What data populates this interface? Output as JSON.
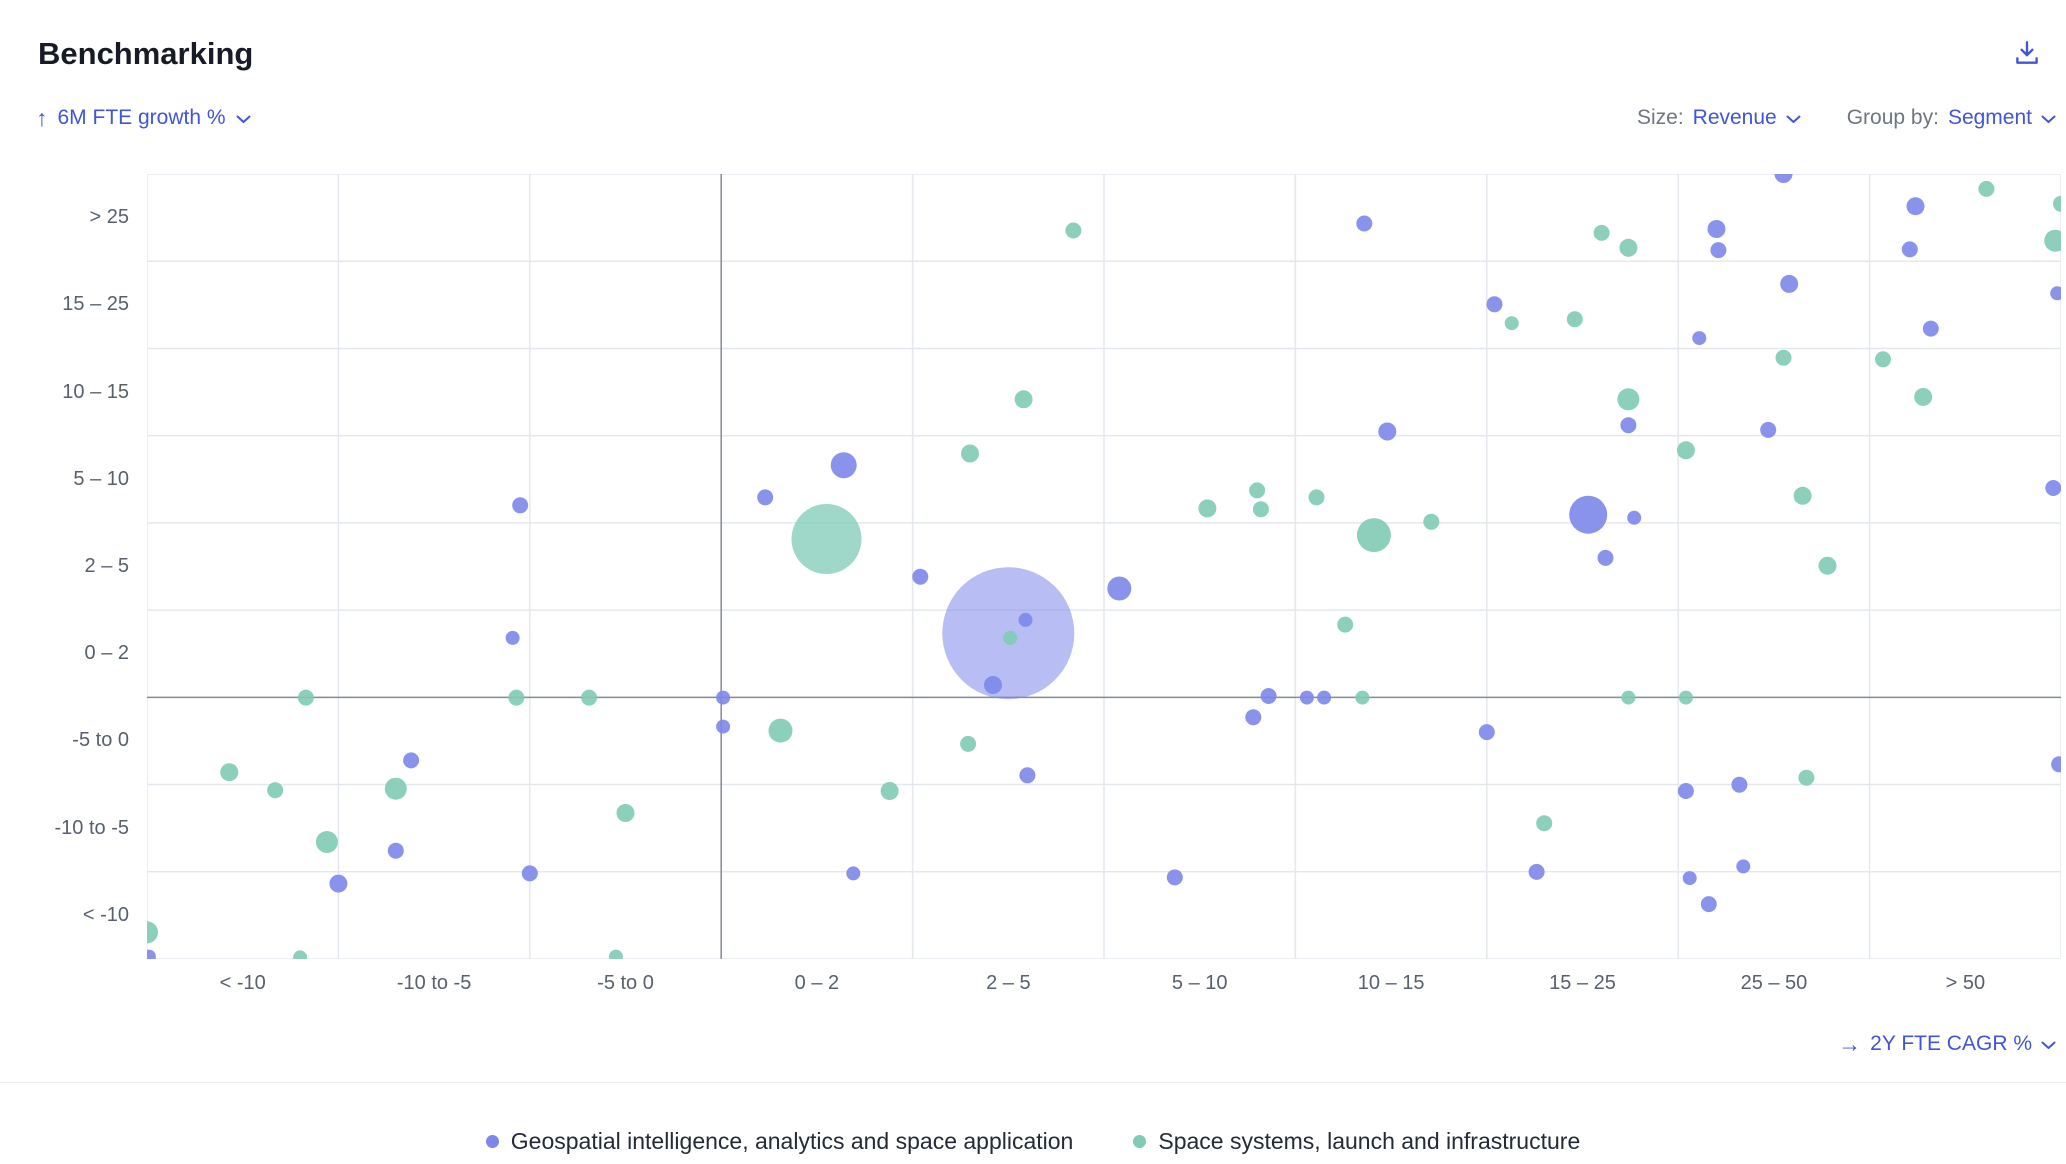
{
  "header": {
    "title": "Benchmarking"
  },
  "controls": {
    "y_axis_label": "6M FTE growth %",
    "size_prefix": "Size:",
    "size_value": "Revenue",
    "group_prefix": "Group by:",
    "group_value": "Segment",
    "x_axis_label": "2Y FTE CAGR %"
  },
  "colors": {
    "accent": "#4155d9",
    "grid": "#e4e8ee",
    "zero_line": "#858c96",
    "blue_series": "#7d87ea",
    "teal_series": "#7fcbb5"
  },
  "chart_data": {
    "type": "scatter",
    "title": "Benchmarking",
    "xlabel": "2Y FTE CAGR %",
    "ylabel": "6M FTE growth %",
    "size_by": "Revenue",
    "group_by": "Segment",
    "grid": true,
    "legend_position": "bottom",
    "x_categories": [
      "< -10",
      "-10 to -5",
      "-5 to 0",
      "0 – 2",
      "2 – 5",
      "5 – 10",
      "10 – 15",
      "15 – 25",
      "25 – 50",
      "> 50"
    ],
    "y_categories": [
      "> 25",
      "15 – 25",
      "10 – 15",
      "5 – 10",
      "2 – 5",
      "0 – 2",
      "-5 to 0",
      "-10 to -5",
      "< -10"
    ],
    "zero_x_boundary": 3,
    "zero_y_boundary": 6,
    "point_format": "[x_percent_of_plot_width, y_percent_of_plot_height, bubble_radius_px]",
    "series": [
      {
        "name": "Geospatial intelligence, analytics and space application",
        "color": "#7d87ea",
        "points": [
          [
            19.5,
            42.2,
            8
          ],
          [
            19.1,
            59.1,
            7
          ],
          [
            13.8,
            74.7,
            8
          ],
          [
            13.0,
            86.2,
            8
          ],
          [
            10.0,
            90.4,
            9
          ],
          [
            20.0,
            89.1,
            8
          ],
          [
            30.1,
            66.7,
            7
          ],
          [
            30.1,
            70.4,
            7
          ],
          [
            32.3,
            41.2,
            8
          ],
          [
            36.4,
            37.1,
            13
          ],
          [
            40.4,
            51.3,
            8
          ],
          [
            45.0,
            58.5,
            66
          ],
          [
            45.9,
            56.8,
            7
          ],
          [
            44.2,
            65.1,
            9
          ],
          [
            46.0,
            76.6,
            8
          ],
          [
            36.9,
            89.1,
            7
          ],
          [
            50.8,
            52.8,
            12
          ],
          [
            53.7,
            89.6,
            8
          ],
          [
            57.8,
            69.2,
            8
          ],
          [
            58.6,
            66.5,
            8
          ],
          [
            60.6,
            66.7,
            7
          ],
          [
            61.5,
            66.7,
            7
          ],
          [
            63.6,
            6.3,
            8
          ],
          [
            64.8,
            32.8,
            9
          ],
          [
            70.0,
            71.1,
            8
          ],
          [
            70.4,
            16.6,
            8
          ],
          [
            72.6,
            88.9,
            8
          ],
          [
            75.3,
            43.4,
            19
          ],
          [
            76.2,
            48.9,
            8
          ],
          [
            77.4,
            32.0,
            8
          ],
          [
            77.7,
            43.8,
            7
          ],
          [
            80.4,
            78.6,
            8
          ],
          [
            80.6,
            89.7,
            7
          ],
          [
            81.6,
            93.0,
            8
          ],
          [
            82.0,
            7.0,
            9
          ],
          [
            82.1,
            9.7,
            8
          ],
          [
            81.1,
            20.9,
            7
          ],
          [
            83.2,
            77.8,
            8
          ],
          [
            83.4,
            88.2,
            7
          ],
          [
            84.7,
            32.6,
            8
          ],
          [
            85.5,
            0.0,
            9
          ],
          [
            85.8,
            14.0,
            9
          ],
          [
            92.1,
            9.6,
            8
          ],
          [
            92.4,
            4.1,
            9
          ],
          [
            93.2,
            19.7,
            8
          ],
          [
            99.6,
            40.0,
            8
          ],
          [
            99.9,
            75.2,
            8
          ],
          [
            99.8,
            15.2,
            7
          ],
          [
            0.1,
            99.7,
            7
          ]
        ]
      },
      {
        "name": "Space systems, launch and infrastructure",
        "color": "#7fcbb5",
        "points": [
          [
            4.3,
            76.2,
            9
          ],
          [
            6.7,
            78.5,
            8
          ],
          [
            8.3,
            66.7,
            8
          ],
          [
            9.4,
            85.1,
            11
          ],
          [
            13.0,
            78.3,
            11
          ],
          [
            19.3,
            66.7,
            8
          ],
          [
            23.1,
            66.7,
            8
          ],
          [
            25.0,
            81.4,
            9
          ],
          [
            24.5,
            99.7,
            7
          ],
          [
            8.0,
            99.8,
            7
          ],
          [
            0.0,
            96.6,
            11
          ],
          [
            33.1,
            70.9,
            12
          ],
          [
            35.5,
            46.5,
            35
          ],
          [
            38.8,
            78.6,
            9
          ],
          [
            42.9,
            72.6,
            8
          ],
          [
            43.0,
            35.6,
            9
          ],
          [
            45.1,
            59.1,
            7
          ],
          [
            45.8,
            28.7,
            9
          ],
          [
            48.4,
            7.2,
            8
          ],
          [
            55.4,
            42.6,
            9
          ],
          [
            58.0,
            40.3,
            8
          ],
          [
            58.2,
            42.7,
            8
          ],
          [
            61.1,
            41.2,
            8
          ],
          [
            62.6,
            57.4,
            8
          ],
          [
            63.5,
            66.7,
            7
          ],
          [
            64.1,
            46.0,
            17
          ],
          [
            67.1,
            44.3,
            8
          ],
          [
            71.3,
            19.0,
            7
          ],
          [
            73.0,
            82.7,
            8
          ],
          [
            74.6,
            18.5,
            8
          ],
          [
            76.0,
            7.5,
            8
          ],
          [
            77.4,
            9.4,
            9
          ],
          [
            77.4,
            28.7,
            11
          ],
          [
            77.4,
            66.7,
            7
          ],
          [
            80.4,
            35.2,
            9
          ],
          [
            80.4,
            66.7,
            7
          ],
          [
            85.5,
            23.4,
            8
          ],
          [
            86.5,
            41.0,
            9
          ],
          [
            86.7,
            76.9,
            8
          ],
          [
            87.8,
            49.9,
            9
          ],
          [
            90.7,
            23.6,
            8
          ],
          [
            92.8,
            28.4,
            9
          ],
          [
            96.1,
            1.9,
            8
          ],
          [
            99.7,
            8.5,
            11
          ],
          [
            100.0,
            3.8,
            8
          ]
        ]
      }
    ]
  }
}
